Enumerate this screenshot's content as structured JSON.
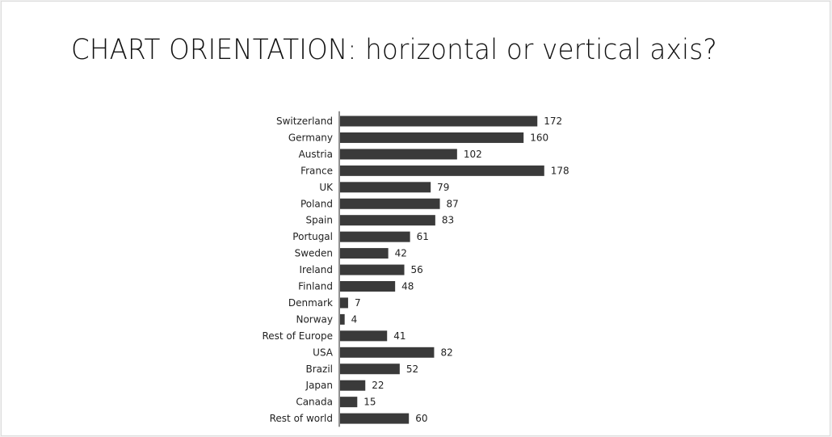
{
  "slide": {
    "title": "CHART ORIENTATION: horizontal or vertical axis?"
  },
  "chart_data": {
    "type": "bar",
    "orientation": "horizontal",
    "categories": [
      "Switzerland",
      "Germany",
      "Austria",
      "France",
      "UK",
      "Poland",
      "Spain",
      "Portugal",
      "Sweden",
      "Ireland",
      "Finland",
      "Denmark",
      "Norway",
      "Rest of Europe",
      "USA",
      "Brazil",
      "Japan",
      "Canada",
      "Rest of world"
    ],
    "values": [
      172,
      160,
      102,
      178,
      79,
      87,
      83,
      61,
      42,
      56,
      48,
      7,
      4,
      41,
      82,
      52,
      22,
      15,
      60
    ],
    "title": "",
    "xlabel": "",
    "ylabel": "",
    "data_labels": true,
    "grid": false,
    "bar_color": "#3a3a3a"
  }
}
